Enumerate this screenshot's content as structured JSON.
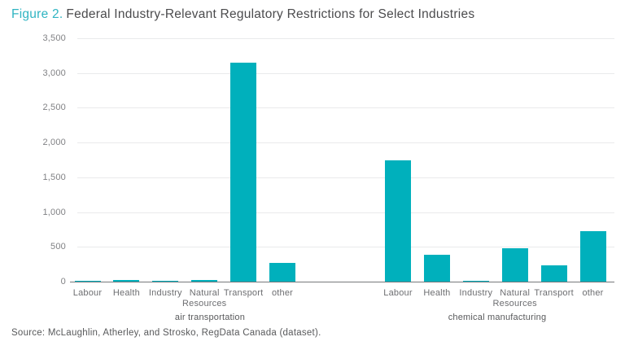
{
  "title": {
    "prefix": "Figure 2.",
    "text": "Federal Industry-Relevant Regulatory Restrictions for Select Industries"
  },
  "source": "Source: McLaughlin, Atherley, and Strosko, RegData Canada (dataset).",
  "colors": {
    "bar": "#00b0bc",
    "title_accent": "#2fb4c2",
    "title_text": "#4b4b4d",
    "axis_text": "#808184",
    "category_text": "#6d6e71",
    "gridline": "#e9eaeb",
    "axis_line": "#77787b"
  },
  "chart_data": {
    "type": "bar",
    "title": "Figure 2. Federal Industry-Relevant Regulatory Restrictions for Select Industries",
    "xlabel": "",
    "ylabel": "",
    "ylim": [
      0,
      3500
    ],
    "ytick_step": 500,
    "yticks": [
      "0",
      "500",
      "1,000",
      "1,500",
      "2,000",
      "2,500",
      "3,000",
      "3,500"
    ],
    "grid": true,
    "legend": false,
    "bar_color": "#00b0bc",
    "categories": [
      "Labour",
      "Health",
      "Industry",
      "Natural Resources",
      "Transport",
      "other"
    ],
    "groups": [
      {
        "label": "air transportation",
        "categories": [
          "Labour",
          "Health",
          "Industry",
          "Natural Resources",
          "Transport",
          "other"
        ],
        "values": [
          15,
          25,
          10,
          25,
          3150,
          270
        ]
      },
      {
        "label": "chemical manufacturing",
        "categories": [
          "Labour",
          "Health",
          "Industry",
          "Natural Resources",
          "Transport",
          "other"
        ],
        "values": [
          1750,
          390,
          15,
          475,
          240,
          730
        ]
      }
    ]
  }
}
